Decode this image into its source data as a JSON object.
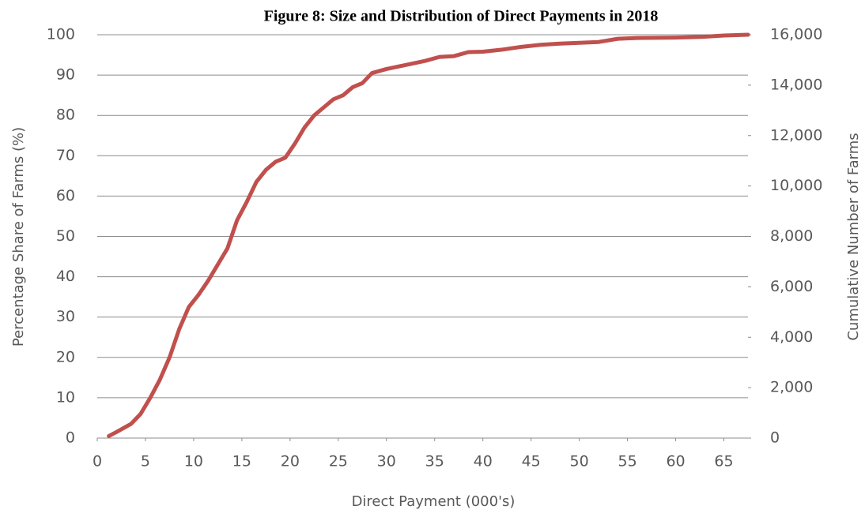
{
  "chart_data": {
    "type": "line",
    "title": "Figure 8: Size and Distribution of Direct Payments in 2018",
    "x_label": "Direct Payment (000's)",
    "y_label": "Percentage Share of Farms (%)",
    "y2_label": "Cumulative Number of Farms",
    "x": [
      1.2,
      2,
      3.5,
      4.5,
      5.5,
      6.5,
      7.5,
      8.5,
      9.5,
      10.5,
      11.5,
      12.5,
      13.5,
      14.5,
      15.5,
      16.5,
      17.5,
      18.5,
      19.5,
      20.5,
      21.5,
      22.5,
      23.5,
      24.5,
      25.5,
      26.5,
      27.5,
      28.5,
      30,
      32,
      34,
      35.5,
      37,
      38.5,
      40,
      42,
      44,
      46,
      48,
      50,
      52,
      54,
      56,
      60,
      63,
      65,
      67.5
    ],
    "series": [
      {
        "color": "#c0504d",
        "values": [
          0.5,
          1.5,
          3.5,
          6,
          10,
          14.5,
          20,
          27,
          32.5,
          35.5,
          39,
          43,
          47,
          54,
          58.5,
          63.5,
          66.5,
          68.5,
          69.5,
          73,
          77,
          80,
          82,
          84,
          85,
          87,
          88,
          90.5,
          91.5,
          92.5,
          93.5,
          94.5,
          94.7,
          95.7,
          95.8,
          96.3,
          97,
          97.5,
          97.8,
          98,
          98.2,
          99,
          99.2,
          99.3,
          99.5,
          99.8,
          100
        ]
      }
    ],
    "xlim": [
      0,
      67.5
    ],
    "xticks": [
      0,
      5,
      10,
      15,
      20,
      25,
      30,
      35,
      40,
      45,
      50,
      55,
      60,
      65
    ],
    "ylim": [
      0,
      100
    ],
    "yticks": [
      0,
      10,
      20,
      30,
      40,
      50,
      60,
      70,
      80,
      90,
      100
    ],
    "y2lim": [
      0,
      16000
    ],
    "y2ticks": [
      0,
      {
        "value": 2000,
        "label": "2,000"
      },
      {
        "value": 4000,
        "label": "4,000"
      },
      {
        "value": 6000,
        "label": "6,000"
      },
      {
        "value": 8000,
        "label": "8,000"
      },
      {
        "value": 10000,
        "label": "10,000"
      },
      {
        "value": 12000,
        "label": "12,000"
      },
      {
        "value": 14000,
        "label": "14,000"
      },
      {
        "value": 16000,
        "label": "16,000"
      }
    ],
    "grid": true
  }
}
